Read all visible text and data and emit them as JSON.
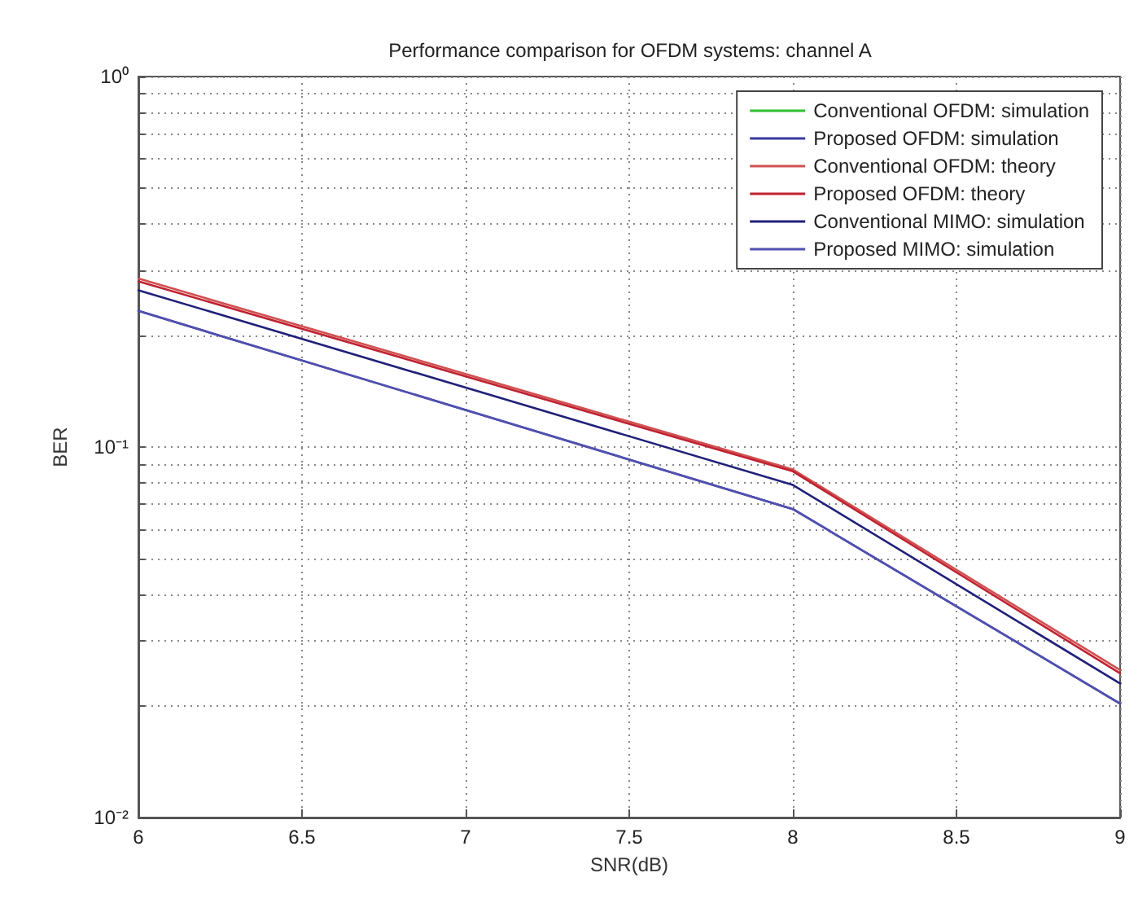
{
  "chart_data": {
    "type": "line",
    "title": "Performance comparison for OFDM systems: channel A",
    "xlabel": "SNR(dB)",
    "ylabel": "BER",
    "x": [
      6,
      8,
      9
    ],
    "series": [
      {
        "name": "Conventional OFDM: simulation",
        "color": "#30c030",
        "values": [
          null,
          null,
          null
        ]
      },
      {
        "name": "Proposed OFDM: simulation",
        "color": "#3a3aa0",
        "values": [
          0.233,
          0.068,
          0.0203
        ]
      },
      {
        "name": "Conventional OFDM: theory",
        "color": "#d05050",
        "values": [
          0.285,
          0.087,
          0.025
        ]
      },
      {
        "name": "Proposed OFDM: theory",
        "color": "#c02030",
        "values": [
          0.28,
          0.086,
          0.0245
        ]
      },
      {
        "name": "Conventional MIMO: simulation",
        "color": "#20207a",
        "values": [
          0.265,
          0.079,
          0.023
        ]
      },
      {
        "name": "Proposed MIMO: simulation",
        "color": "#5050b0",
        "values": [
          0.233,
          0.068,
          0.0203
        ]
      }
    ],
    "log": "y",
    "xlim": [
      6,
      9
    ],
    "xticks": [
      6,
      6.5,
      7,
      7.5,
      8,
      8.5,
      9
    ],
    "ylim": [
      0.01,
      1
    ],
    "yticks": [
      {
        "value": 0.01,
        "label": "10⁻²"
      },
      {
        "value": 0.02,
        "label": null
      },
      {
        "value": 0.03,
        "label": null
      },
      {
        "value": 0.04,
        "label": null
      },
      {
        "value": 0.05,
        "label": null
      },
      {
        "value": 0.06,
        "label": null
      },
      {
        "value": 0.07,
        "label": null
      },
      {
        "value": 0.08,
        "label": null
      },
      {
        "value": 0.09,
        "label": null
      },
      {
        "value": 0.1,
        "label": "10⁻¹"
      },
      {
        "value": 0.2,
        "label": null
      },
      {
        "value": 0.3,
        "label": null
      },
      {
        "value": 0.4,
        "label": null
      },
      {
        "value": 0.5,
        "label": null
      },
      {
        "value": 0.6,
        "label": null
      },
      {
        "value": 0.7,
        "label": null
      },
      {
        "value": 0.8,
        "label": null
      },
      {
        "value": 0.9,
        "label": null
      },
      {
        "value": 1,
        "label": "10⁰"
      }
    ],
    "grid": true,
    "legend": "top right",
    "marker": "none",
    "line_style": "solid"
  }
}
